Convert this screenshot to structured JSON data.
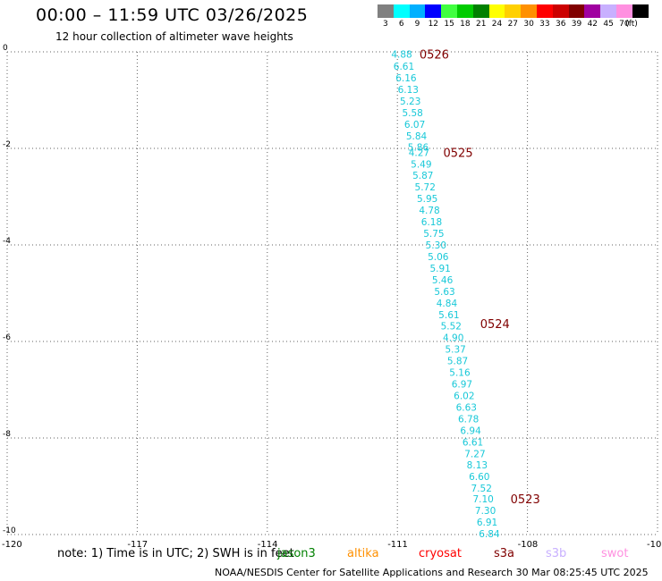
{
  "header": {
    "title": "00:00 – 11:59 UTC 03/26/2025",
    "subtitle": "12 hour collection of altimeter wave heights"
  },
  "color_scale": {
    "unit": "(ft)",
    "bins": [
      {
        "label": "3",
        "color": "#808080"
      },
      {
        "label": "6",
        "color": "#00ffff"
      },
      {
        "label": "9",
        "color": "#00b0ff"
      },
      {
        "label": "12",
        "color": "#0000ff"
      },
      {
        "label": "15",
        "color": "#40ff40"
      },
      {
        "label": "18",
        "color": "#00cc00"
      },
      {
        "label": "21",
        "color": "#008000"
      },
      {
        "label": "24",
        "color": "#ffff00"
      },
      {
        "label": "27",
        "color": "#ffd000"
      },
      {
        "label": "30",
        "color": "#ff9000"
      },
      {
        "label": "33",
        "color": "#ff0000"
      },
      {
        "label": "36",
        "color": "#cc0000"
      },
      {
        "label": "39",
        "color": "#800000"
      },
      {
        "label": "42",
        "color": "#a000a0"
      },
      {
        "label": "45",
        "color": "#c8b0ff"
      },
      {
        "label": "70",
        "color": "#ff90e0"
      },
      {
        "label": "",
        "color": "#000000"
      }
    ]
  },
  "map": {
    "lon_ticks": [
      "-120",
      "-117",
      "-114",
      "-111",
      "-108",
      "-10"
    ],
    "lat_ticks": [
      "0",
      "-2",
      "-4",
      "-6",
      "-8",
      "-10"
    ],
    "grid_color": "#606060",
    "track_colors": {
      "wave": "#18c8d8",
      "time": "#800000"
    }
  },
  "chart_data": {
    "type": "scatter",
    "xlim": [
      -120,
      -105
    ],
    "ylim": [
      -10,
      0
    ],
    "grid": true,
    "points": [
      {
        "lon": -110.9,
        "lat": -0.05,
        "swh": "4.88"
      },
      {
        "lon": -110.85,
        "lat": -0.3,
        "swh": "6.61"
      },
      {
        "lon": -110.8,
        "lat": -0.54,
        "swh": "6.16"
      },
      {
        "lon": -110.75,
        "lat": -0.78,
        "swh": "6.13"
      },
      {
        "lon": -110.7,
        "lat": -1.02,
        "swh": "5.23"
      },
      {
        "lon": -110.65,
        "lat": -1.26,
        "swh": "5.58"
      },
      {
        "lon": -110.6,
        "lat": -1.5,
        "swh": "6.07"
      },
      {
        "lon": -110.56,
        "lat": -1.74,
        "swh": "5.84"
      },
      {
        "lon": -110.52,
        "lat": -1.97,
        "swh": "5.86"
      },
      {
        "lon": -110.5,
        "lat": -2.08,
        "swh": "4.27"
      },
      {
        "lon": -110.45,
        "lat": -2.32,
        "swh": "5.49"
      },
      {
        "lon": -110.41,
        "lat": -2.56,
        "swh": "5.87"
      },
      {
        "lon": -110.36,
        "lat": -2.8,
        "swh": "5.72"
      },
      {
        "lon": -110.31,
        "lat": -3.04,
        "swh": "5.95"
      },
      {
        "lon": -110.26,
        "lat": -3.28,
        "swh": "4.78"
      },
      {
        "lon": -110.21,
        "lat": -3.52,
        "swh": "6.18"
      },
      {
        "lon": -110.16,
        "lat": -3.76,
        "swh": "5.75"
      },
      {
        "lon": -110.11,
        "lat": -4.0,
        "swh": "5.30"
      },
      {
        "lon": -110.06,
        "lat": -4.24,
        "swh": "5.06"
      },
      {
        "lon": -110.01,
        "lat": -4.48,
        "swh": "5.91"
      },
      {
        "lon": -109.96,
        "lat": -4.72,
        "swh": "5.46"
      },
      {
        "lon": -109.91,
        "lat": -4.96,
        "swh": "5.63"
      },
      {
        "lon": -109.86,
        "lat": -5.2,
        "swh": "4.84"
      },
      {
        "lon": -109.81,
        "lat": -5.44,
        "swh": "5.61"
      },
      {
        "lon": -109.76,
        "lat": -5.68,
        "swh": "5.52"
      },
      {
        "lon": -109.71,
        "lat": -5.92,
        "swh": "4.90"
      },
      {
        "lon": -109.66,
        "lat": -6.16,
        "swh": "5.37"
      },
      {
        "lon": -109.61,
        "lat": -6.4,
        "swh": "5.87"
      },
      {
        "lon": -109.56,
        "lat": -6.64,
        "swh": "5.16"
      },
      {
        "lon": -109.51,
        "lat": -6.88,
        "swh": "6.97"
      },
      {
        "lon": -109.46,
        "lat": -7.12,
        "swh": "6.02"
      },
      {
        "lon": -109.41,
        "lat": -7.36,
        "swh": "6.63"
      },
      {
        "lon": -109.36,
        "lat": -7.6,
        "swh": "6.78"
      },
      {
        "lon": -109.31,
        "lat": -7.84,
        "swh": "6.94"
      },
      {
        "lon": -109.26,
        "lat": -8.08,
        "swh": "6.61"
      },
      {
        "lon": -109.21,
        "lat": -8.32,
        "swh": "7.27"
      },
      {
        "lon": -109.16,
        "lat": -8.56,
        "swh": "8.13"
      },
      {
        "lon": -109.11,
        "lat": -8.8,
        "swh": "6.60"
      },
      {
        "lon": -109.06,
        "lat": -9.04,
        "swh": "7.52"
      },
      {
        "lon": -109.02,
        "lat": -9.26,
        "swh": "7.10"
      },
      {
        "lon": -108.97,
        "lat": -9.5,
        "swh": "7.30"
      },
      {
        "lon": -108.93,
        "lat": -9.74,
        "swh": "6.91"
      },
      {
        "lon": -108.88,
        "lat": -9.98,
        "swh": "6.84"
      }
    ],
    "time_labels": [
      {
        "lon": -110.15,
        "lat": -0.05,
        "text": "0526"
      },
      {
        "lon": -109.6,
        "lat": -2.08,
        "text": "0525"
      },
      {
        "lon": -108.75,
        "lat": -5.63,
        "text": "0524"
      },
      {
        "lon": -108.05,
        "lat": -9.26,
        "text": "0523"
      }
    ]
  },
  "footer": {
    "note": "note:  1) Time is in UTC; 2) SWH is in feet",
    "satellites": [
      {
        "label": "jason3",
        "color": "#008000",
        "offset": 0
      },
      {
        "label": "altika",
        "color": "#ff9000",
        "offset": 78
      },
      {
        "label": "cryosat",
        "color": "#ff0000",
        "offset": 158
      },
      {
        "label": "s3a",
        "color": "#800000",
        "offset": 242
      },
      {
        "label": "s3b",
        "color": "#c8b0ff",
        "offset": 300
      },
      {
        "label": "swot",
        "color": "#ff90e0",
        "offset": 362
      }
    ],
    "credit": "NOAA/NESDIS Center for Satellite Applications and Research    30 Mar 08:25:45 UTC 2025"
  }
}
